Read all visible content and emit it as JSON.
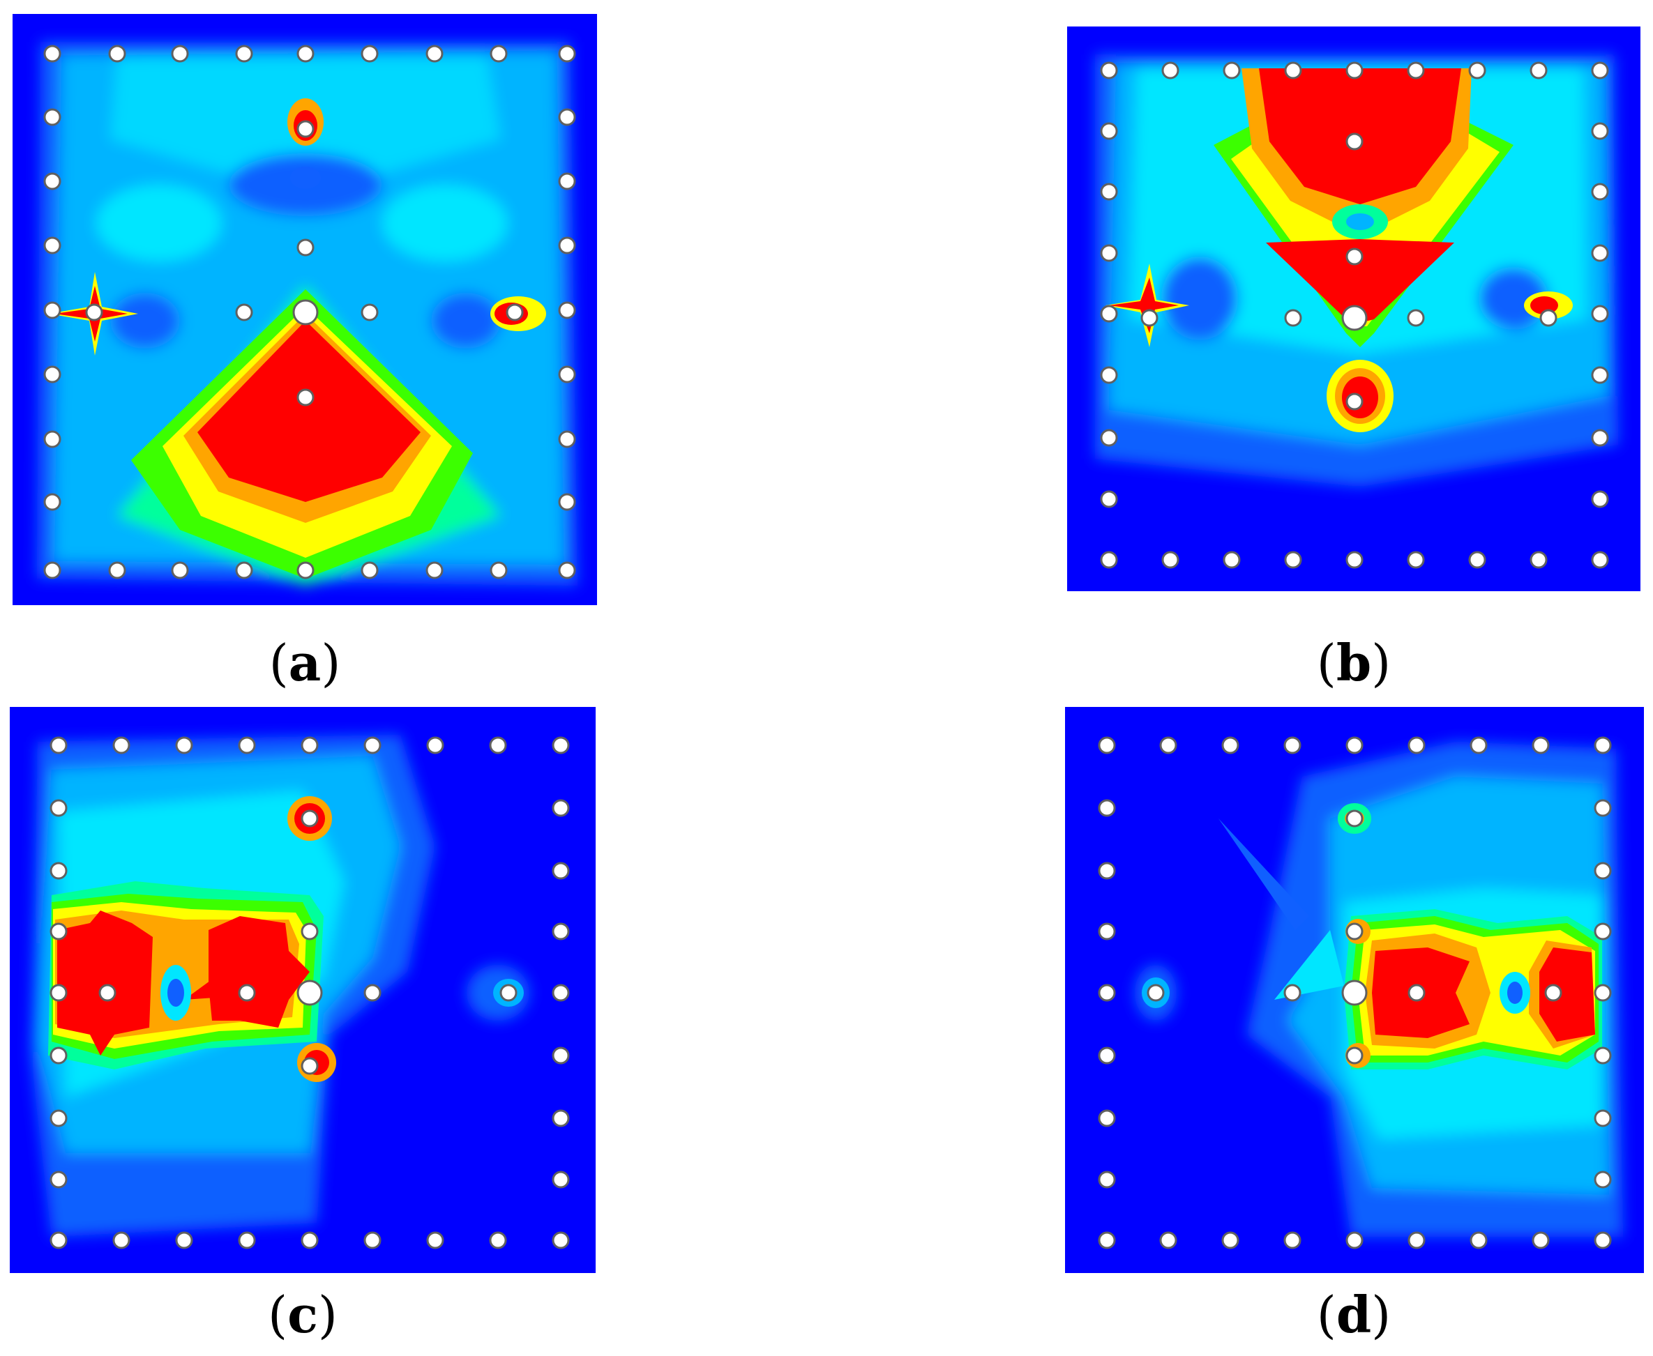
{
  "panels": [
    {
      "id": "a",
      "label": "a"
    },
    {
      "id": "b",
      "label": "b"
    },
    {
      "id": "c",
      "label": "c"
    },
    {
      "id": "d",
      "label": "d"
    }
  ],
  "colors": {
    "background_field": "#0000ff",
    "contour_levels": [
      "#0000ff",
      "#1060ff",
      "#00b4ff",
      "#00e6ff",
      "#00ff9c",
      "#3cff00",
      "#c8ff00",
      "#ffff00",
      "#ffa500",
      "#ff0000"
    ],
    "node_fill": "#ffffff",
    "node_stroke": "#606060"
  }
}
